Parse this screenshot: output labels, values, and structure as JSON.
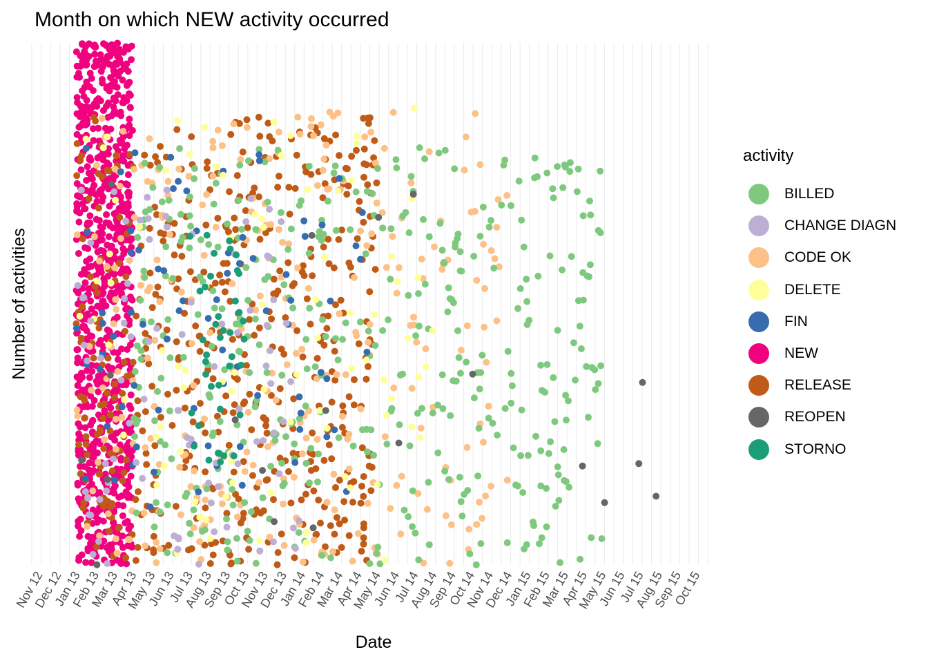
{
  "chart_data": {
    "type": "scatter",
    "title": "Month on which NEW activity occurred",
    "xlabel": "Date",
    "ylabel": "Number of activities",
    "x_ticks": [
      "Nov 12",
      "Dec 12",
      "Jan 13",
      "Feb 13",
      "Mar 13",
      "Apr 13",
      "May 13",
      "Jun 13",
      "Jul 13",
      "Aug 13",
      "Sep 13",
      "Oct 13",
      "Nov 13",
      "Dec 13",
      "Jan 14",
      "Feb 14",
      "Mar 14",
      "Apr 14",
      "May 14",
      "Jun 14",
      "Jul 14",
      "Aug 14",
      "Sep 14",
      "Oct 14",
      "Nov 14",
      "Dec 14",
      "Jan 15",
      "Feb 15",
      "Mar 15",
      "Apr 15",
      "May 15",
      "Jun 15",
      "Jul 15",
      "Aug 15",
      "Sep 15",
      "Oct 15"
    ],
    "xlim": [
      "2012-11",
      "2015-10"
    ],
    "y_ticks_shown": false,
    "grid": "vertical minor lines only",
    "legend": {
      "title": "activity",
      "position": "right",
      "entries": [
        {
          "name": "BILLED",
          "color": "#7FC97F"
        },
        {
          "name": "CHANGE DIAGN",
          "color": "#BEAED4"
        },
        {
          "name": "CODE OK",
          "color": "#FDC086"
        },
        {
          "name": "DELETE",
          "color": "#FFFF99"
        },
        {
          "name": "FIN",
          "color": "#386CB0"
        },
        {
          "name": "NEW",
          "color": "#F0027F"
        },
        {
          "name": "RELEASE",
          "color": "#BF5B17"
        },
        {
          "name": "REOPEN",
          "color": "#666666"
        },
        {
          "name": "STORNO",
          "color": "#1B9E77"
        }
      ]
    },
    "series_extents": [
      {
        "name": "NEW",
        "x_range": [
          "2013-01",
          "2013-04"
        ],
        "y_range": [
          0.0,
          1.0
        ]
      },
      {
        "name": "RELEASE",
        "x_range": [
          "2013-01",
          "2014-05"
        ],
        "y_range": [
          0.0,
          0.86
        ]
      },
      {
        "name": "CODE OK",
        "x_range": [
          "2013-01",
          "2014-12"
        ],
        "y_range": [
          0.0,
          0.87
        ]
      },
      {
        "name": "BILLED",
        "x_range": [
          "2013-04",
          "2015-05"
        ],
        "y_range": [
          0.0,
          0.8
        ]
      },
      {
        "name": "FIN",
        "x_range": [
          "2013-01",
          "2014-05"
        ],
        "y_range": [
          0.1,
          0.8
        ]
      },
      {
        "name": "DELETE",
        "x_range": [
          "2013-01",
          "2014-08"
        ],
        "y_range": [
          0.0,
          0.88
        ]
      },
      {
        "name": "CHANGE DIAGN",
        "x_range": [
          "2013-01",
          "2014-01"
        ],
        "y_range": [
          0.0,
          0.72
        ]
      },
      {
        "name": "STORNO",
        "x_range": [
          "2013-07",
          "2013-10"
        ],
        "y_range": [
          0.18,
          0.65
        ]
      },
      {
        "name": "REOPEN",
        "x_range": [
          "2013-01",
          "2015-09"
        ],
        "y_range": [
          0.0,
          0.75
        ]
      }
    ]
  }
}
